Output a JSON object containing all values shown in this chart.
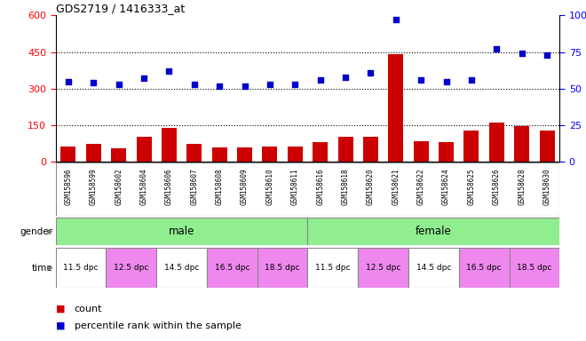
{
  "title": "GDS2719 / 1416333_at",
  "samples": [
    "GSM158596",
    "GSM158599",
    "GSM158602",
    "GSM158604",
    "GSM158606",
    "GSM158607",
    "GSM158608",
    "GSM158609",
    "GSM158610",
    "GSM158611",
    "GSM158616",
    "GSM158618",
    "GSM158620",
    "GSM158621",
    "GSM158622",
    "GSM158624",
    "GSM158625",
    "GSM158626",
    "GSM158628",
    "GSM158630"
  ],
  "count_values": [
    65,
    75,
    55,
    105,
    140,
    75,
    60,
    60,
    65,
    65,
    80,
    105,
    105,
    440,
    85,
    80,
    130,
    160,
    145,
    130
  ],
  "percentile_values": [
    55,
    54,
    53,
    57,
    62,
    53,
    52,
    52,
    53,
    53,
    56,
    58,
    61,
    97,
    56,
    55,
    56,
    77,
    74,
    73
  ],
  "left_ylim": [
    0,
    600
  ],
  "right_ylim": [
    0,
    100
  ],
  "left_yticks": [
    0,
    150,
    300,
    450,
    600
  ],
  "right_yticks": [
    0,
    25,
    50,
    75,
    100
  ],
  "right_yticklabels": [
    "0",
    "25",
    "50",
    "75",
    "100%"
  ],
  "hlines": [
    150,
    300,
    450
  ],
  "bar_color": "#cc0000",
  "dot_color": "#0000cc",
  "gender_color": "#90ee90",
  "time_colors": [
    "#ffaaff",
    "#ee88ee",
    "#cc66cc",
    "#aa44aa",
    "#ff88ff"
  ],
  "time_color_list": [
    "#ffffff",
    "#ee88ee",
    "#ffffff",
    "#ee88ee",
    "#ffffff"
  ],
  "time_labels": [
    "11.5 dpc",
    "12.5 dpc",
    "14.5 dpc",
    "16.5 dpc",
    "18.5 dpc"
  ],
  "legend_count_label": "count",
  "legend_pct_label": "percentile rank within the sample",
  "plot_bg_color": "#ffffff",
  "xtick_bg_color": "#cccccc",
  "gender_label": "gender",
  "time_label": "time",
  "perc_scale_factor": 6.0
}
